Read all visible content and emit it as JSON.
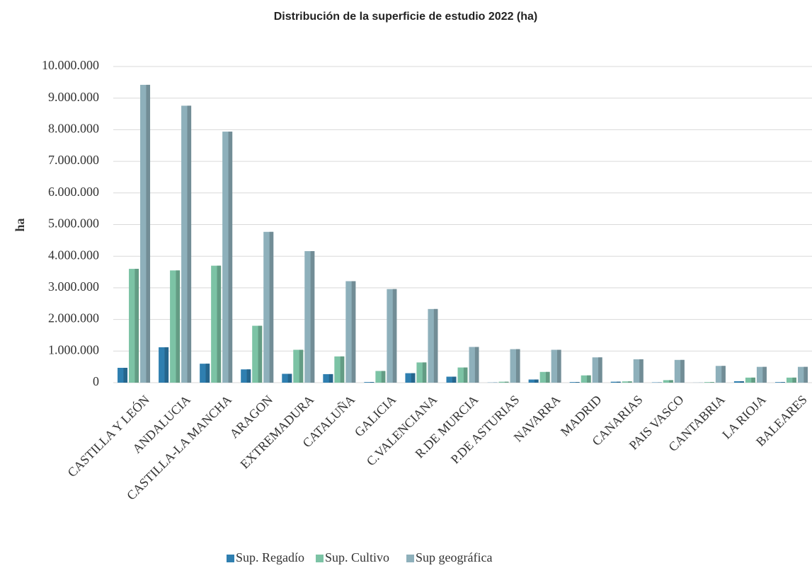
{
  "chart_data": {
    "type": "bar",
    "title": "Distribución de la superficie de estudio 2022 (ha)",
    "y_label": "ha",
    "categories": [
      "CASTILLA Y LEÓN",
      "ANDALUCIA",
      "CASTILLA-LA MANCHA",
      "ARAGON",
      "EXTREMADURA",
      "CATALUÑA",
      "GALICIA",
      "C.VALENCIANA",
      "R.DE MURCIA",
      "P.DE ASTURIAS",
      "NAVARRA",
      "MADRID",
      "CANARIAS",
      "PAIS VASCO",
      "CANTABRIA",
      "LA RIOJA",
      "BALEARES"
    ],
    "series": [
      {
        "name": "Sup. Regadío",
        "color": "#2f7fb0",
        "values": [
          470000,
          1120000,
          600000,
          420000,
          280000,
          270000,
          20000,
          300000,
          190000,
          5000,
          100000,
          20000,
          30000,
          10000,
          2000,
          45000,
          18000
        ]
      },
      {
        "name": "Sup. Cultivo",
        "color": "#7cc3a5",
        "values": [
          3600000,
          3550000,
          3700000,
          1800000,
          1040000,
          830000,
          370000,
          640000,
          480000,
          30000,
          340000,
          230000,
          40000,
          80000,
          20000,
          160000,
          160000
        ]
      },
      {
        "name": "Sup geográfica",
        "color": "#8eb0bb",
        "values": [
          9420000,
          8760000,
          7940000,
          4770000,
          4160000,
          3210000,
          2960000,
          2330000,
          1130000,
          1060000,
          1040000,
          800000,
          740000,
          720000,
          530000,
          500000,
          500000
        ]
      }
    ],
    "ylim": [
      0,
      10000000
    ],
    "yticks": [
      0,
      {
        "value": 1000000,
        "label": "1.000.000"
      },
      {
        "value": 2000000,
        "label": "2.000.000"
      },
      {
        "value": 3000000,
        "label": "3.000.000"
      },
      {
        "value": 4000000,
        "label": "4.000.000"
      },
      {
        "value": 5000000,
        "label": "5.000.000"
      },
      {
        "value": 6000000,
        "label": "6.000.000"
      },
      {
        "value": 7000000,
        "label": "7.000.000"
      },
      {
        "value": 8000000,
        "label": "8.000.000"
      },
      {
        "value": 9000000,
        "label": "9.000.000"
      },
      {
        "value": 10000000,
        "label": "10.000.000"
      }
    ],
    "grid": true,
    "legend": "bottom"
  }
}
